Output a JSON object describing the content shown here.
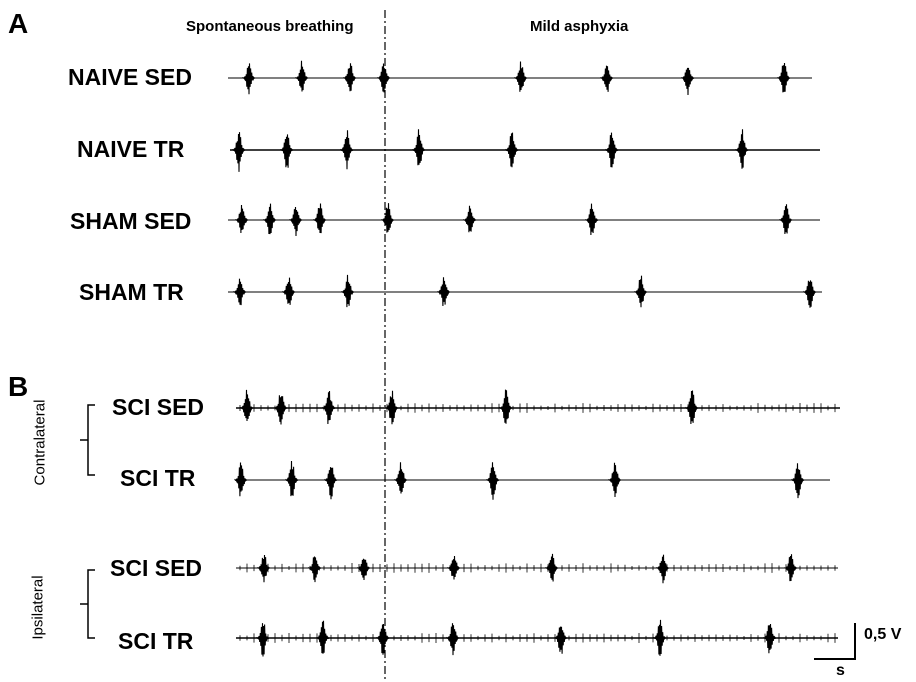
{
  "panels": {
    "a": "A",
    "b": "B"
  },
  "phases": {
    "left": "Spontaneous breathing",
    "right": "Mild asphyxia"
  },
  "groups": {
    "contralateral": "Contralateral",
    "ipsilateral": "Ipsilateral"
  },
  "scale_bar": {
    "voltage": "0,5 V",
    "time": "s"
  },
  "traces": [
    {
      "label": "NAIVE SED",
      "bursts_spontaneous": 4,
      "bursts_asphyxia": 4
    },
    {
      "label": "NAIVE TR",
      "bursts_spontaneous": 3,
      "bursts_asphyxia": 4
    },
    {
      "label": "SHAM SED",
      "bursts_spontaneous": 4,
      "bursts_asphyxia": 4
    },
    {
      "label": "SHAM TR",
      "bursts_spontaneous": 3,
      "bursts_asphyxia": 3
    },
    {
      "label": "SCI SED",
      "bursts_spontaneous": 3,
      "bursts_asphyxia": 3
    },
    {
      "label": "SCI TR",
      "bursts_spontaneous": 3,
      "bursts_asphyxia": 4
    },
    {
      "label": "SCI SED",
      "bursts_spontaneous": 4,
      "bursts_asphyxia": 4
    },
    {
      "label": "SCI TR",
      "bursts_spontaneous": 4,
      "bursts_asphyxia": 4
    }
  ]
}
